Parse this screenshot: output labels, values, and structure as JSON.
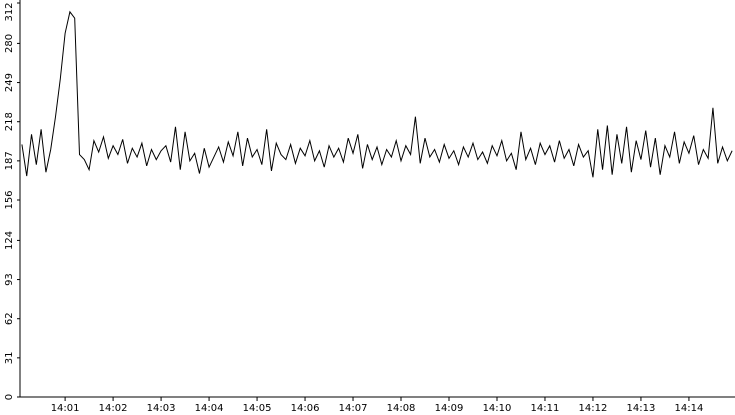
{
  "chart_data": {
    "type": "line",
    "x": [
      0.1,
      0.2,
      0.3,
      0.4,
      0.5,
      0.6,
      0.7,
      0.8,
      0.9,
      1.0,
      1.1,
      1.2,
      1.3,
      1.4,
      1.5,
      1.6,
      1.7,
      1.8,
      1.9,
      2.0,
      2.1,
      2.2,
      2.3,
      2.4,
      2.5,
      2.6,
      2.7,
      2.8,
      2.9,
      3.0,
      3.1,
      3.2,
      3.3,
      3.4,
      3.5,
      3.6,
      3.7,
      3.8,
      3.9,
      4.0,
      4.1,
      4.2,
      4.3,
      4.4,
      4.5,
      4.6,
      4.7,
      4.8,
      4.9,
      5.0,
      5.1,
      5.2,
      5.3,
      5.4,
      5.5,
      5.6,
      5.7,
      5.8,
      5.9,
      6.0,
      6.1,
      6.2,
      6.3,
      6.4,
      6.5,
      6.6,
      6.7,
      6.8,
      6.9,
      7.0,
      7.1,
      7.2,
      7.3,
      7.4,
      7.5,
      7.6,
      7.7,
      7.8,
      7.9,
      8.0,
      8.1,
      8.2,
      8.3,
      8.4,
      8.5,
      8.6,
      8.7,
      8.8,
      8.9,
      9.0,
      9.1,
      9.2,
      9.3,
      9.4,
      9.5,
      9.6,
      9.7,
      9.8,
      9.9,
      10.0,
      10.1,
      10.2,
      10.3,
      10.4,
      10.5,
      10.6,
      10.7,
      10.8,
      10.9,
      11.0,
      11.1,
      11.2,
      11.3,
      11.4,
      11.5,
      11.6,
      11.7,
      11.8,
      11.9,
      12.0,
      12.1,
      12.2,
      12.3,
      12.4,
      12.5,
      12.6,
      12.7,
      12.8,
      12.9,
      13.0,
      13.1,
      13.2,
      13.3,
      13.4,
      13.5,
      13.6,
      13.7,
      13.8,
      13.9,
      14.0,
      14.1,
      14.2,
      14.3,
      14.4,
      14.5,
      14.6,
      14.7,
      14.8,
      14.9
    ],
    "values": [
      200,
      175,
      208,
      184,
      212,
      178,
      196,
      222,
      252,
      288,
      305,
      300,
      192,
      188,
      180,
      203,
      194,
      206,
      189,
      199,
      192,
      204,
      185,
      197,
      190,
      201,
      183,
      196,
      188,
      195,
      199,
      186,
      214,
      180,
      210,
      187,
      193,
      177,
      197,
      182,
      190,
      198,
      186,
      202,
      191,
      210,
      183,
      205,
      190,
      196,
      184,
      212,
      179,
      201,
      192,
      188,
      200,
      185,
      197,
      191,
      203,
      187,
      195,
      182,
      199,
      190,
      197,
      186,
      205,
      193,
      208,
      181,
      200,
      188,
      198,
      184,
      196,
      190,
      203,
      187,
      199,
      192,
      222,
      185,
      205,
      190,
      196,
      186,
      200,
      189,
      195,
      184,
      198,
      190,
      201,
      188,
      194,
      185,
      199,
      191,
      203,
      187,
      193,
      180,
      210,
      188,
      197,
      184,
      201,
      192,
      199,
      186,
      203,
      189,
      196,
      183,
      200,
      190,
      195,
      174,
      212,
      180,
      215,
      176,
      208,
      185,
      214,
      178,
      203,
      188,
      211,
      182,
      205,
      176,
      199,
      190,
      210,
      185,
      202,
      193,
      207,
      184,
      196,
      189,
      229,
      185,
      198,
      187,
      195
    ],
    "color": "#000000",
    "xlim": [
      0.06,
      14.96
    ],
    "xticks": [
      {
        "value": 1,
        "label": "14:01"
      },
      {
        "value": 2,
        "label": "14:02"
      },
      {
        "value": 3,
        "label": "14:03"
      },
      {
        "value": 4,
        "label": "14:04"
      },
      {
        "value": 5,
        "label": "14:05"
      },
      {
        "value": 6,
        "label": "14:06"
      },
      {
        "value": 7,
        "label": "14:07"
      },
      {
        "value": 8,
        "label": "14:08"
      },
      {
        "value": 9,
        "label": "14:09"
      },
      {
        "value": 10,
        "label": "14:10"
      },
      {
        "value": 11,
        "label": "14:11"
      },
      {
        "value": 12,
        "label": "14:12"
      },
      {
        "value": 13,
        "label": "14:13"
      },
      {
        "value": 14,
        "label": "14:14"
      }
    ],
    "ylim": [
      0,
      312
    ],
    "yticks": [
      0,
      31,
      62,
      93,
      124,
      156,
      187,
      218,
      249,
      280,
      312
    ]
  }
}
